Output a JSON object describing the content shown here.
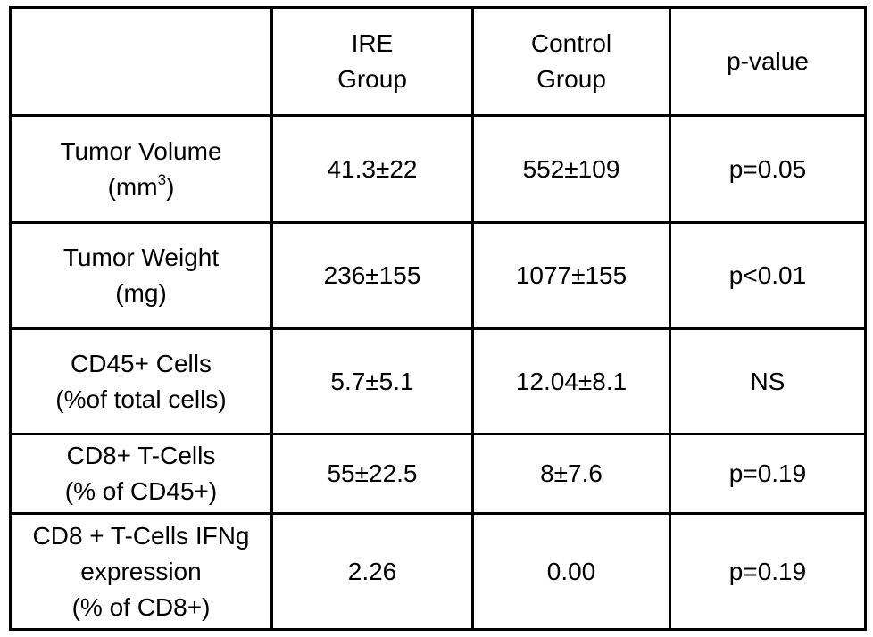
{
  "table": {
    "header": {
      "corner": "",
      "ire": [
        "IRE",
        "Group"
      ],
      "control": [
        "Control",
        "Group"
      ],
      "pvalue": "p-value"
    },
    "rows": [
      {
        "label": [
          "Tumor Volume"
        ],
        "unit": {
          "prefix": "(mm",
          "sup": "3",
          "suffix": ")"
        },
        "ire": "41.3±22",
        "control": "552±109",
        "p": "p=0.05"
      },
      {
        "label": [
          "Tumor Weight",
          "(mg)"
        ],
        "ire": "236±155",
        "control": "1077±155",
        "p": "p<0.01"
      },
      {
        "label": [
          "CD45+ Cells",
          "(%of total cells)"
        ],
        "ire": "5.7±5.1",
        "control": "12.04±8.1",
        "p": "NS"
      },
      {
        "label": [
          "CD8+ T-Cells",
          "(% of CD45+)"
        ],
        "ire": "55±22.5",
        "control": "8±7.6",
        "p": "p=0.19"
      },
      {
        "label": [
          "CD8 + T-Cells IFNg",
          "expression",
          "(% of CD8+)"
        ],
        "ire": "2.26",
        "control": "0.00",
        "p": "p=0.19"
      }
    ]
  }
}
